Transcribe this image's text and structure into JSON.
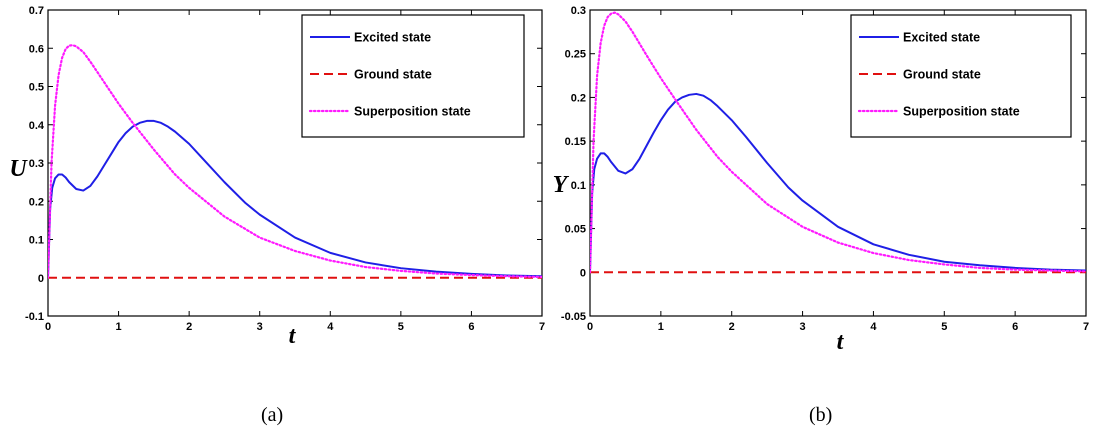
{
  "chart_data": [
    {
      "type": "line",
      "caption": "(a)",
      "xlabel": "t",
      "ylabel": "U",
      "xlim": [
        0,
        7
      ],
      "ylim": [
        -0.1,
        0.7
      ],
      "xticks": [
        "0",
        "1",
        "2",
        "3",
        "4",
        "5",
        "6",
        "7"
      ],
      "yticks": [
        "-0.1",
        "0",
        "0.1",
        "0.2",
        "0.3",
        "0.4",
        "0.5",
        "0.6",
        "0.7"
      ],
      "grid": false,
      "legend": "top-right",
      "series": [
        {
          "name": "Excited state",
          "color": "#1f1fe6",
          "dash": "solid",
          "x": [
            0,
            0.03,
            0.06,
            0.1,
            0.15,
            0.2,
            0.25,
            0.3,
            0.4,
            0.5,
            0.6,
            0.7,
            0.8,
            0.9,
            1.0,
            1.1,
            1.2,
            1.3,
            1.4,
            1.5,
            1.6,
            1.7,
            1.8,
            2.0,
            2.2,
            2.5,
            2.8,
            3.0,
            3.5,
            4.0,
            4.5,
            5.0,
            5.5,
            6.0,
            6.5,
            7.0
          ],
          "y": [
            0,
            0.18,
            0.235,
            0.26,
            0.27,
            0.27,
            0.262,
            0.25,
            0.232,
            0.228,
            0.24,
            0.265,
            0.295,
            0.325,
            0.355,
            0.378,
            0.395,
            0.405,
            0.41,
            0.41,
            0.405,
            0.395,
            0.382,
            0.35,
            0.31,
            0.25,
            0.195,
            0.165,
            0.105,
            0.065,
            0.04,
            0.025,
            0.016,
            0.01,
            0.006,
            0.004
          ]
        },
        {
          "name": "Ground state",
          "color": "#e01010",
          "dash": "dashed",
          "x": [
            0,
            7
          ],
          "y": [
            0,
            0
          ]
        },
        {
          "name": "Superposition state",
          "color": "#ff1aff",
          "dash": "dotted",
          "x": [
            0,
            0.05,
            0.1,
            0.15,
            0.2,
            0.25,
            0.3,
            0.35,
            0.4,
            0.5,
            0.6,
            0.8,
            1.0,
            1.2,
            1.5,
            1.8,
            2.0,
            2.5,
            3.0,
            3.5,
            4.0,
            4.5,
            5.0,
            5.5,
            6.0,
            6.5,
            7.0
          ],
          "y": [
            0,
            0.3,
            0.45,
            0.53,
            0.575,
            0.598,
            0.607,
            0.608,
            0.605,
            0.59,
            0.565,
            0.51,
            0.455,
            0.405,
            0.335,
            0.27,
            0.235,
            0.16,
            0.105,
            0.07,
            0.045,
            0.028,
            0.018,
            0.011,
            0.007,
            0.004,
            0.002
          ]
        }
      ]
    },
    {
      "type": "line",
      "caption": "(b)",
      "xlabel": "t",
      "ylabel": "Υ",
      "xlim": [
        0,
        7
      ],
      "ylim": [
        -0.05,
        0.3
      ],
      "xticks": [
        "0",
        "1",
        "2",
        "3",
        "4",
        "5",
        "6",
        "7"
      ],
      "yticks": [
        "-0.05",
        "0",
        "0.05",
        "0.1",
        "0.15",
        "0.2",
        "0.25",
        "0.3"
      ],
      "grid": false,
      "legend": "top-right",
      "series": [
        {
          "name": "Excited state",
          "color": "#1f1fe6",
          "dash": "solid",
          "x": [
            0,
            0.03,
            0.06,
            0.1,
            0.15,
            0.2,
            0.25,
            0.3,
            0.4,
            0.5,
            0.6,
            0.7,
            0.8,
            0.9,
            1.0,
            1.1,
            1.2,
            1.3,
            1.4,
            1.5,
            1.6,
            1.7,
            1.8,
            2.0,
            2.2,
            2.5,
            2.8,
            3.0,
            3.5,
            4.0,
            4.5,
            5.0,
            5.5,
            6.0,
            6.5,
            7.0
          ],
          "y": [
            0,
            0.09,
            0.118,
            0.13,
            0.136,
            0.136,
            0.132,
            0.126,
            0.116,
            0.113,
            0.118,
            0.13,
            0.145,
            0.16,
            0.174,
            0.186,
            0.195,
            0.2,
            0.203,
            0.204,
            0.202,
            0.197,
            0.19,
            0.174,
            0.155,
            0.125,
            0.097,
            0.082,
            0.052,
            0.032,
            0.02,
            0.012,
            0.008,
            0.005,
            0.003,
            0.002
          ]
        },
        {
          "name": "Ground state",
          "color": "#e01010",
          "dash": "dashed",
          "x": [
            0,
            7
          ],
          "y": [
            0,
            0
          ]
        },
        {
          "name": "Superposition state",
          "color": "#ff1aff",
          "dash": "dotted",
          "x": [
            0,
            0.05,
            0.1,
            0.15,
            0.2,
            0.25,
            0.3,
            0.35,
            0.4,
            0.5,
            0.6,
            0.8,
            1.0,
            1.2,
            1.5,
            1.8,
            2.0,
            2.5,
            3.0,
            3.5,
            4.0,
            4.5,
            5.0,
            5.5,
            6.0,
            6.5,
            7.0
          ],
          "y": [
            0,
            0.15,
            0.225,
            0.262,
            0.282,
            0.292,
            0.296,
            0.297,
            0.295,
            0.287,
            0.275,
            0.248,
            0.222,
            0.198,
            0.163,
            0.132,
            0.115,
            0.078,
            0.052,
            0.034,
            0.022,
            0.014,
            0.009,
            0.005,
            0.003,
            0.002,
            0.001
          ]
        }
      ]
    }
  ]
}
